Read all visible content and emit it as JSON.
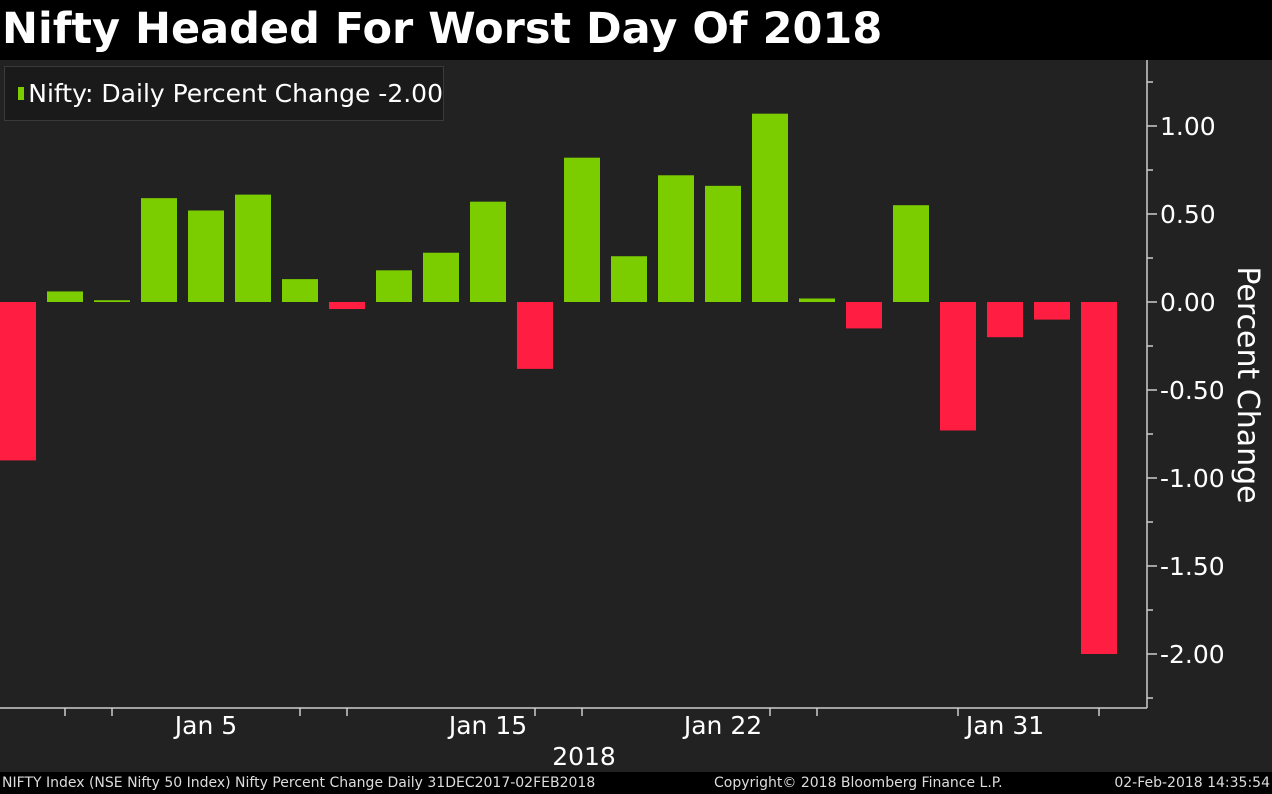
{
  "chart_data": {
    "type": "bar",
    "title": "Nifty Headed For Worst Day Of 2018",
    "legend": "Nifty: Daily Percent Change -2.00",
    "ylabel": "Percent Change",
    "xlabel": "2018",
    "ylim": [
      -2.3,
      1.35
    ],
    "yticks": [
      1.0,
      0.5,
      0.0,
      -0.5,
      -1.0,
      -1.5,
      -2.0
    ],
    "ytick_labels": [
      "1.00",
      "0.50",
      "0.00",
      "-0.50",
      "-1.00",
      "-1.50",
      "-2.00"
    ],
    "xtick_labels": [
      {
        "label": "Jan 5",
        "index": 4
      },
      {
        "label": "Jan 15",
        "index": 10
      },
      {
        "label": "Jan 22",
        "index": 15
      },
      {
        "label": "Jan 31",
        "index": 21
      }
    ],
    "values": [
      -0.9,
      0.06,
      0.01,
      0.59,
      0.52,
      0.61,
      0.13,
      -0.04,
      0.18,
      0.28,
      0.57,
      -0.38,
      0.82,
      0.26,
      0.72,
      0.66,
      1.07,
      0.02,
      -0.15,
      0.55,
      -0.73,
      -0.2,
      -0.1,
      -2.0
    ],
    "colors": {
      "positive": "#7ccd00",
      "negative": "#ff1e41",
      "axis": "#cccccc",
      "grid": "#555555"
    }
  },
  "footer": {
    "source": "NIFTY Index (NSE Nifty 50 Index) Nifty Percent Change  Daily 31DEC2017-02FEB2018",
    "copyright": "Copyright© 2018 Bloomberg Finance L.P.",
    "timestamp": "02-Feb-2018 14:35:54"
  }
}
